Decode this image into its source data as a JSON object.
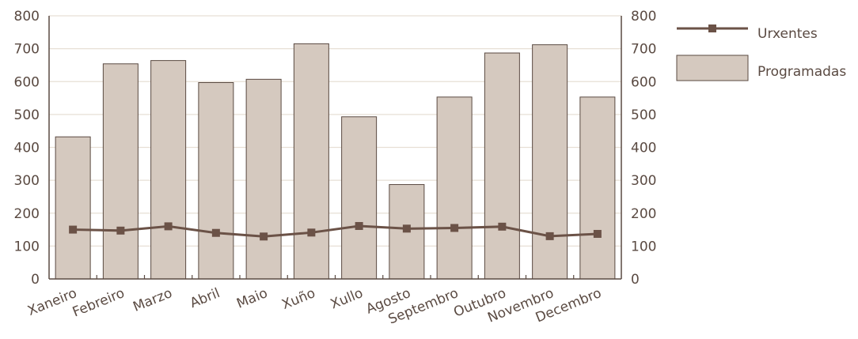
{
  "chart_data": {
    "type": "bar",
    "categories": [
      "Xaneiro",
      "Febreiro",
      "Marzo",
      "Abril",
      "Maio",
      "Xuño",
      "Xullo",
      "Agosto",
      "Septembro",
      "Outubro",
      "Novembro",
      "Decembro"
    ],
    "series": [
      {
        "name": "Programadas",
        "type": "bar",
        "values": [
          432,
          654,
          664,
          597,
          607,
          715,
          493,
          287,
          553,
          687,
          712,
          553
        ]
      },
      {
        "name": "Urxentes",
        "type": "line",
        "values": [
          150,
          147,
          160,
          140,
          129,
          141,
          161,
          153,
          155,
          159,
          130,
          137
        ]
      }
    ],
    "ylim": [
      0,
      800
    ],
    "yticks": [
      0,
      100,
      200,
      300,
      400,
      500,
      600,
      700,
      800
    ],
    "secondary_ylim": [
      0,
      800
    ],
    "grid": true,
    "legend_position": "right",
    "colors": {
      "bar_fill": "#d5c9bf",
      "bar_stroke": "#5a4a42",
      "line": "#6b5247",
      "marker": "#6b5247",
      "grid": "#e7dfd5",
      "axis": "#5a4a42",
      "text": "#5a4a42"
    }
  }
}
